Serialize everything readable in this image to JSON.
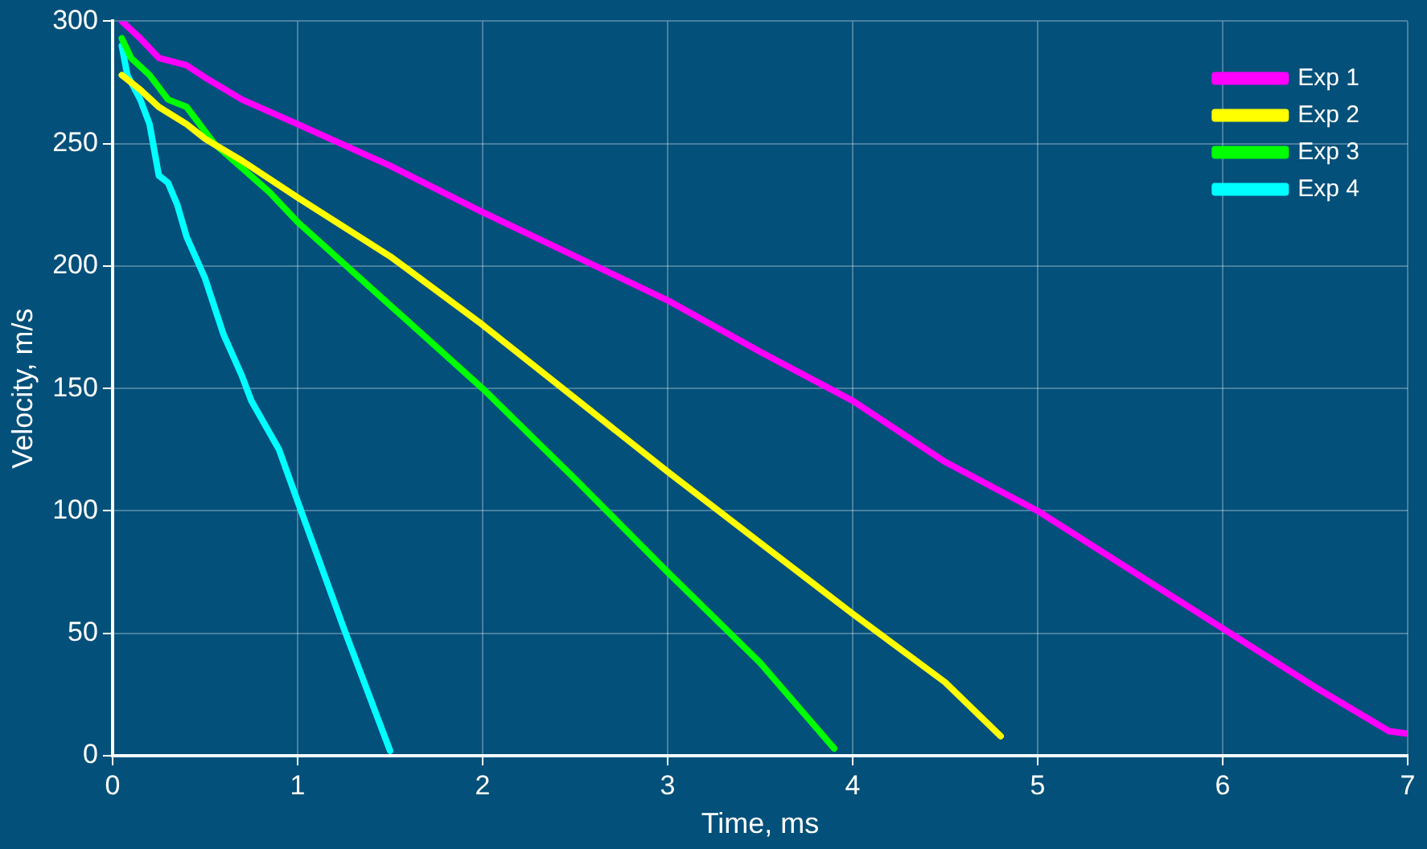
{
  "chart_data": {
    "type": "line",
    "xlabel": "Time, ms",
    "ylabel": "Velocity, m/s",
    "xlim": [
      0,
      7
    ],
    "xticks": [
      0,
      1,
      2,
      3,
      4,
      5,
      6,
      7
    ],
    "ylim": [
      0,
      300
    ],
    "yticks": [
      0,
      50,
      100,
      150,
      200,
      250,
      300
    ],
    "grid": true,
    "legend": "top right",
    "marker": "none",
    "line_style": "solid",
    "series": [
      {
        "name": "Exp 1",
        "color": "#ff00ff",
        "x": [
          0.05,
          0.15,
          0.25,
          0.4,
          0.5,
          0.7,
          1.0,
          1.5,
          2.0,
          2.5,
          3.0,
          3.5,
          4.0,
          4.5,
          5.0,
          5.5,
          6.0,
          6.5,
          6.9,
          7.0
        ],
        "values": [
          300,
          293,
          285,
          282,
          277,
          268,
          258,
          241,
          222,
          204,
          186,
          165,
          145,
          120,
          100,
          76,
          52,
          28,
          10,
          9
        ]
      },
      {
        "name": "Exp 2",
        "color": "#ffff00",
        "x": [
          0.05,
          0.15,
          0.25,
          0.4,
          0.5,
          0.7,
          1.0,
          1.5,
          2.0,
          2.5,
          3.0,
          3.5,
          4.0,
          4.5,
          4.8
        ],
        "values": [
          278,
          272,
          265,
          258,
          252,
          243,
          228,
          204,
          176,
          146,
          116,
          87,
          58,
          30,
          8
        ]
      },
      {
        "name": "Exp 3",
        "color": "#00ff00",
        "x": [
          0.05,
          0.1,
          0.2,
          0.3,
          0.4,
          0.5,
          0.55,
          0.7,
          0.85,
          1.0,
          1.5,
          2.0,
          2.5,
          3.0,
          3.5,
          3.9
        ],
        "values": [
          293,
          285,
          278,
          268,
          265,
          255,
          250,
          240,
          230,
          218,
          184,
          150,
          113,
          75,
          38,
          3
        ]
      },
      {
        "name": "Exp 4",
        "color": "#00ffff",
        "x": [
          0.05,
          0.08,
          0.15,
          0.2,
          0.25,
          0.3,
          0.35,
          0.4,
          0.5,
          0.6,
          0.7,
          0.75,
          0.9,
          1.0,
          1.25,
          1.5
        ],
        "values": [
          290,
          278,
          268,
          258,
          237,
          234,
          225,
          212,
          195,
          172,
          155,
          145,
          125,
          104,
          52,
          2
        ]
      }
    ]
  }
}
